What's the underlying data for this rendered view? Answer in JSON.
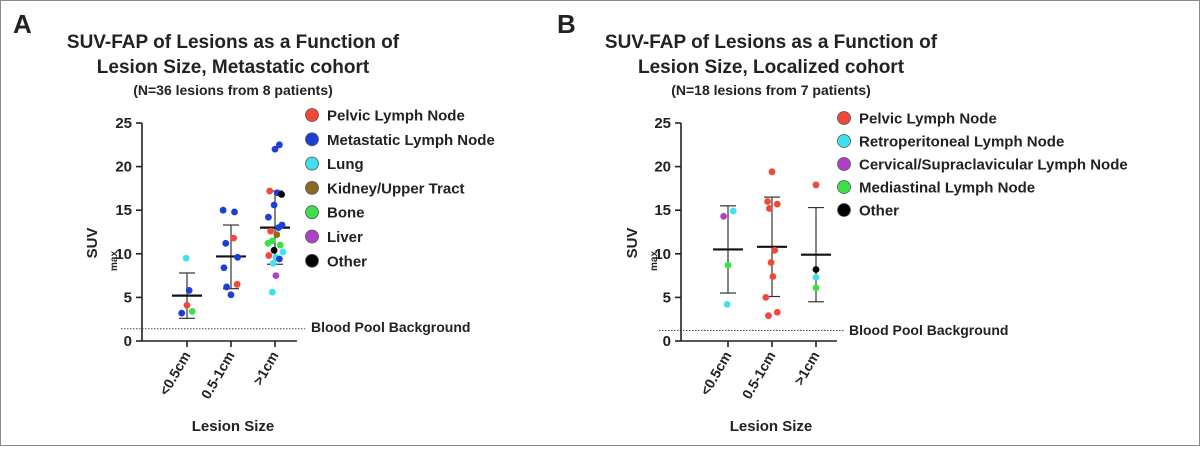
{
  "colors": {
    "pelvic": "#f0483a",
    "metastatic": "#1d3fd6",
    "lung": "#3fe0f0",
    "kidney": "#8a6a22",
    "bone": "#3ee04a",
    "liver": "#b040c8",
    "other": "#000000",
    "retroperitoneal": "#3fe0f0",
    "cervical": "#b040c8",
    "mediastinal": "#3ee04a"
  },
  "chart_data": [
    {
      "type": "scatter",
      "panel_label": "A",
      "title_lines": [
        "SUV-FAP of Lesions as a Function of",
        "Lesion Size, Metastatic cohort"
      ],
      "subtitle": "(N=36 lesions from 8 patients)",
      "ylabel": "SUV",
      "ylabel_sub": "max",
      "xlabel": "Lesion Size",
      "categories": [
        "<0.5cm",
        "0.5-1cm",
        ">1cm"
      ],
      "ylim": [
        0,
        25
      ],
      "yticks": [
        "0",
        "5",
        "10",
        "15",
        "20",
        "25"
      ],
      "reference_line": {
        "value": 1.4,
        "label": "Blood Pool Background"
      },
      "legend": [
        {
          "key": "pelvic",
          "label": "Pelvic Lymph Node"
        },
        {
          "key": "metastatic",
          "label": "Metastatic Lymph Node"
        },
        {
          "key": "lung",
          "label": "Lung"
        },
        {
          "key": "kidney",
          "label": "Kidney/Upper Tract"
        },
        {
          "key": "bone",
          "label": "Bone"
        },
        {
          "key": "liver",
          "label": "Liver"
        },
        {
          "key": "other",
          "label": "Other"
        }
      ],
      "summary": [
        {
          "mean": 5.2,
          "low": 2.6,
          "high": 7.8
        },
        {
          "mean": 9.7,
          "low": 6.0,
          "high": 13.3
        },
        {
          "mean": 13.0,
          "low": 8.8,
          "high": 17.2
        }
      ],
      "points": [
        {
          "cat": 0,
          "jitter": -0.12,
          "y": 3.2,
          "key": "metastatic"
        },
        {
          "cat": 0,
          "jitter": 0.0,
          "y": 4.1,
          "key": "pelvic"
        },
        {
          "cat": 0,
          "jitter": 0.12,
          "y": 3.4,
          "key": "bone"
        },
        {
          "cat": 0,
          "jitter": 0.05,
          "y": 5.8,
          "key": "metastatic"
        },
        {
          "cat": 0,
          "jitter": -0.02,
          "y": 9.5,
          "key": "lung"
        },
        {
          "cat": 1,
          "jitter": -0.18,
          "y": 15.0,
          "key": "metastatic"
        },
        {
          "cat": 1,
          "jitter": 0.08,
          "y": 14.8,
          "key": "metastatic"
        },
        {
          "cat": 1,
          "jitter": -0.12,
          "y": 11.2,
          "key": "metastatic"
        },
        {
          "cat": 1,
          "jitter": 0.06,
          "y": 11.8,
          "key": "pelvic"
        },
        {
          "cat": 1,
          "jitter": 0.15,
          "y": 9.6,
          "key": "metastatic"
        },
        {
          "cat": 1,
          "jitter": -0.16,
          "y": 8.4,
          "key": "metastatic"
        },
        {
          "cat": 1,
          "jitter": -0.1,
          "y": 6.2,
          "key": "metastatic"
        },
        {
          "cat": 1,
          "jitter": 0.0,
          "y": 5.3,
          "key": "metastatic"
        },
        {
          "cat": 1,
          "jitter": 0.14,
          "y": 6.5,
          "key": "pelvic"
        },
        {
          "cat": 2,
          "jitter": 0.1,
          "y": 22.5,
          "key": "metastatic"
        },
        {
          "cat": 2,
          "jitter": 0.0,
          "y": 22.0,
          "key": "metastatic"
        },
        {
          "cat": 2,
          "jitter": -0.12,
          "y": 17.2,
          "key": "pelvic"
        },
        {
          "cat": 2,
          "jitter": 0.05,
          "y": 17.0,
          "key": "metastatic"
        },
        {
          "cat": 2,
          "jitter": 0.15,
          "y": 16.8,
          "key": "other"
        },
        {
          "cat": 2,
          "jitter": -0.02,
          "y": 15.6,
          "key": "metastatic"
        },
        {
          "cat": 2,
          "jitter": -0.15,
          "y": 14.2,
          "key": "metastatic"
        },
        {
          "cat": 2,
          "jitter": 0.08,
          "y": 13.0,
          "key": "metastatic"
        },
        {
          "cat": 2,
          "jitter": 0.16,
          "y": 13.3,
          "key": "metastatic"
        },
        {
          "cat": 2,
          "jitter": -0.1,
          "y": 12.6,
          "key": "pelvic"
        },
        {
          "cat": 2,
          "jitter": 0.04,
          "y": 12.2,
          "key": "kidney"
        },
        {
          "cat": 2,
          "jitter": -0.16,
          "y": 11.2,
          "key": "bone"
        },
        {
          "cat": 2,
          "jitter": -0.06,
          "y": 11.5,
          "key": "bone"
        },
        {
          "cat": 2,
          "jitter": 0.12,
          "y": 11.0,
          "key": "bone"
        },
        {
          "cat": 2,
          "jitter": -0.02,
          "y": 10.4,
          "key": "other"
        },
        {
          "cat": 2,
          "jitter": 0.18,
          "y": 10.2,
          "key": "lung"
        },
        {
          "cat": 2,
          "jitter": -0.14,
          "y": 9.8,
          "key": "pelvic"
        },
        {
          "cat": 2,
          "jitter": 0.02,
          "y": 9.6,
          "key": "lung"
        },
        {
          "cat": 2,
          "jitter": 0.1,
          "y": 9.4,
          "key": "metastatic"
        },
        {
          "cat": 2,
          "jitter": -0.04,
          "y": 8.9,
          "key": "lung"
        },
        {
          "cat": 2,
          "jitter": 0.02,
          "y": 7.5,
          "key": "liver"
        },
        {
          "cat": 2,
          "jitter": -0.06,
          "y": 5.6,
          "key": "lung"
        }
      ]
    },
    {
      "type": "scatter",
      "panel_label": "B",
      "title_lines": [
        "SUV-FAP of Lesions as a Function of",
        "Lesion Size, Localized cohort"
      ],
      "subtitle": "(N=18 lesions from 7 patients)",
      "ylabel": "SUV",
      "ylabel_sub": "max",
      "xlabel": "Lesion Size",
      "categories": [
        "<0.5cm",
        "0.5-1cm",
        ">1cm"
      ],
      "ylim": [
        0,
        25
      ],
      "yticks": [
        "0",
        "5",
        "10",
        "15",
        "20",
        "25"
      ],
      "reference_line": {
        "value": 1.2,
        "label": "Blood Pool Background"
      },
      "legend": [
        {
          "key": "pelvic",
          "label": "Pelvic Lymph Node"
        },
        {
          "key": "retroperitoneal",
          "label": "Retroperitoneal Lymph Node"
        },
        {
          "key": "cervical",
          "label": "Cervical/Supraclavicular Lymph Node"
        },
        {
          "key": "mediastinal",
          "label": "Mediastinal Lymph Node"
        },
        {
          "key": "other",
          "label": "Other"
        }
      ],
      "summary": [
        {
          "mean": 10.5,
          "low": 5.5,
          "high": 15.5
        },
        {
          "mean": 10.8,
          "low": 5.1,
          "high": 16.5
        },
        {
          "mean": 9.9,
          "low": 4.5,
          "high": 15.3
        }
      ],
      "points": [
        {
          "cat": 0,
          "jitter": -0.1,
          "y": 14.3,
          "key": "cervical"
        },
        {
          "cat": 0,
          "jitter": 0.12,
          "y": 14.9,
          "key": "retroperitoneal"
        },
        {
          "cat": 0,
          "jitter": 0.0,
          "y": 8.7,
          "key": "mediastinal"
        },
        {
          "cat": 0,
          "jitter": -0.02,
          "y": 4.2,
          "key": "retroperitoneal"
        },
        {
          "cat": 1,
          "jitter": 0.0,
          "y": 19.4,
          "key": "pelvic"
        },
        {
          "cat": 1,
          "jitter": -0.1,
          "y": 16.0,
          "key": "pelvic"
        },
        {
          "cat": 1,
          "jitter": 0.12,
          "y": 15.7,
          "key": "pelvic"
        },
        {
          "cat": 1,
          "jitter": -0.06,
          "y": 15.2,
          "key": "pelvic"
        },
        {
          "cat": 1,
          "jitter": 0.06,
          "y": 10.4,
          "key": "pelvic"
        },
        {
          "cat": 1,
          "jitter": -0.02,
          "y": 9.0,
          "key": "pelvic"
        },
        {
          "cat": 1,
          "jitter": 0.02,
          "y": 7.4,
          "key": "pelvic"
        },
        {
          "cat": 1,
          "jitter": -0.14,
          "y": 5.0,
          "key": "pelvic"
        },
        {
          "cat": 1,
          "jitter": 0.12,
          "y": 3.3,
          "key": "pelvic"
        },
        {
          "cat": 1,
          "jitter": -0.08,
          "y": 2.9,
          "key": "pelvic"
        },
        {
          "cat": 2,
          "jitter": 0.0,
          "y": 17.9,
          "key": "pelvic"
        },
        {
          "cat": 2,
          "jitter": 0.0,
          "y": 8.2,
          "key": "other"
        },
        {
          "cat": 2,
          "jitter": 0.0,
          "y": 7.3,
          "key": "retroperitoneal"
        },
        {
          "cat": 2,
          "jitter": 0.0,
          "y": 6.1,
          "key": "mediastinal"
        }
      ]
    }
  ]
}
